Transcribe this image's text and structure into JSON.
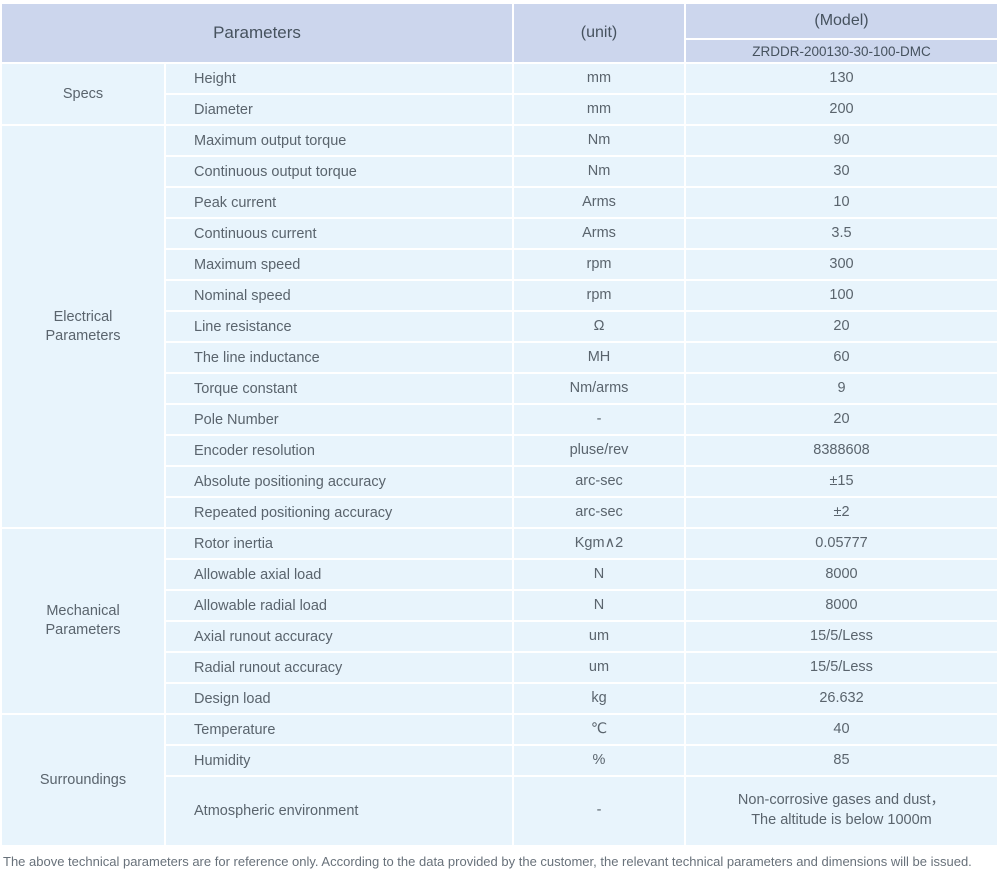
{
  "header": {
    "parameters_label": "Parameters",
    "unit_label": "(unit)",
    "model_label": "(Model)",
    "model_code": "ZRDDR-200130-30-100-DMC"
  },
  "sections": [
    {
      "name": "Specs",
      "rows": [
        {
          "param": "Height",
          "unit": "mm",
          "value": "130"
        },
        {
          "param": "Diameter",
          "unit": "mm",
          "value": "200"
        }
      ]
    },
    {
      "name": "Electrical Parameters",
      "rows": [
        {
          "param": "Maximum output torque",
          "unit": "Nm",
          "value": "90"
        },
        {
          "param": "Continuous output torque",
          "unit": "Nm",
          "value": "30"
        },
        {
          "param": "Peak current",
          "unit": "Arms",
          "value": "10"
        },
        {
          "param": "Continuous current",
          "unit": "Arms",
          "value": "3.5"
        },
        {
          "param": "Maximum speed",
          "unit": "rpm",
          "value": "300"
        },
        {
          "param": "Nominal speed",
          "unit": "rpm",
          "value": "100"
        },
        {
          "param": "Line resistance",
          "unit": "Ω",
          "value": "20"
        },
        {
          "param": "The line inductance",
          "unit": "MH",
          "value": "60"
        },
        {
          "param": "Torque constant",
          "unit": "Nm/arms",
          "value": "9"
        },
        {
          "param": "Pole Number",
          "unit": "-",
          "value": "20"
        },
        {
          "param": "Encoder resolution",
          "unit": "pluse/rev",
          "value": "8388608"
        },
        {
          "param": "Absolute positioning accuracy",
          "unit": "arc-sec",
          "value": "±15"
        },
        {
          "param": "Repeated positioning accuracy",
          "unit": "arc-sec",
          "value": "±2"
        }
      ]
    },
    {
      "name": "Mechanical Parameters",
      "rows": [
        {
          "param": "Rotor inertia",
          "unit": "Kgm∧2",
          "value": "0.05777"
        },
        {
          "param": "Allowable axial load",
          "unit": "N",
          "value": "8000"
        },
        {
          "param": "Allowable radial load",
          "unit": "N",
          "value": "8000"
        },
        {
          "param": "Axial runout accuracy",
          "unit": "um",
          "value": "15/5/Less"
        },
        {
          "param": "Radial runout accuracy",
          "unit": "um",
          "value": "15/5/Less"
        },
        {
          "param": "Design load",
          "unit": "kg",
          "value": "26.632"
        }
      ]
    },
    {
      "name": "Surroundings",
      "rows": [
        {
          "param": "Temperature",
          "unit": "℃",
          "value": "40"
        },
        {
          "param": "Humidity",
          "unit": "%",
          "value": "85"
        },
        {
          "param": "Atmospheric environment",
          "unit": "-",
          "value": "Non-corrosive gases and dust，\nThe altitude is below 1000m",
          "tall": true
        }
      ]
    }
  ],
  "footer": {
    "note": "The above technical parameters are for reference only. According to the data provided by the customer, the relevant technical parameters and dimensions will be issued."
  },
  "colors": {
    "header_bg": "#ccd6ed",
    "row_bg": "#e8f4fc",
    "grid_line": "#ffffff",
    "text": "#5a646d"
  }
}
